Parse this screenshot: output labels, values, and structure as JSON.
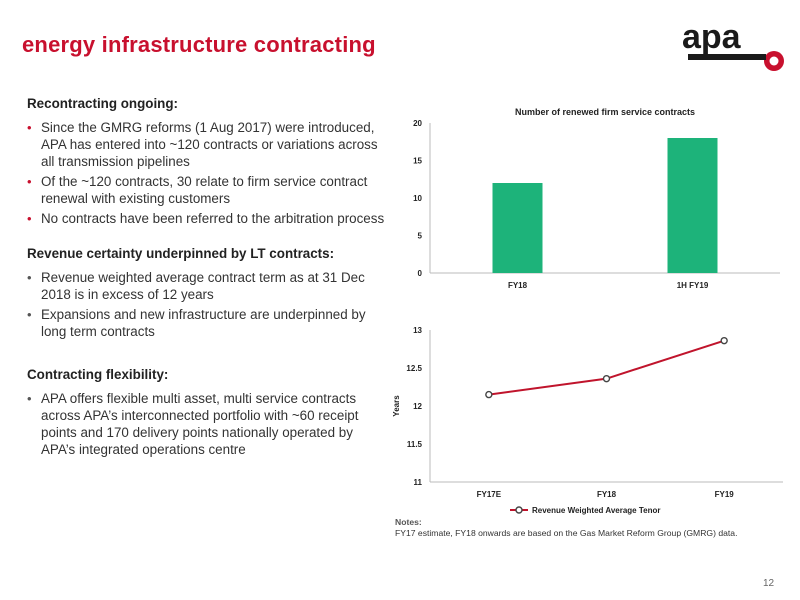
{
  "slide": {
    "title": "energy infrastructure contracting",
    "logo_text": "apa",
    "page_number": "12"
  },
  "sections": [
    {
      "heading": "Recontracting ongoing:",
      "bullets": [
        "Since the GMRG reforms (1 Aug 2017) were introduced, APA has entered into ~120 contracts or variations across all transmission pipelines",
        "Of the ~120 contracts, 30 relate to firm service contract renewal with existing customers",
        "No contracts have been referred to the arbitration process"
      ]
    },
    {
      "heading": "Revenue certainty underpinned by LT contracts:",
      "bullets": [
        "Revenue weighted average contract term as at 31 Dec 2018 is in excess of 12 years",
        "Expansions and new infrastructure are underpinned by long term contracts"
      ]
    },
    {
      "heading": "Contracting flexibility:",
      "bullets": [
        "APA offers flexible multi asset, multi service contracts across APA’s interconnected portfolio with ~60 receipt points and 170 delivery points nationally operated by APA’s integrated operations centre"
      ]
    }
  ],
  "notes": {
    "heading": "Notes:",
    "text": "FY17 estimate, FY18 onwards are based on the Gas Market Reform Group (GMRG) data."
  },
  "colors": {
    "brand_red": "#c8102e",
    "bar_green": "#1db37a",
    "line_red": "#c0142c",
    "logo_dark": "#1a1a1a"
  },
  "chart_data": [
    {
      "type": "bar",
      "title": "Number of renewed firm service contracts",
      "categories": [
        "FY18",
        "1H FY19"
      ],
      "values": [
        12,
        18
      ],
      "ylim": [
        0,
        20
      ],
      "yticks": [
        "0",
        "5",
        "10",
        "15",
        "20"
      ],
      "grid": false
    },
    {
      "type": "line",
      "title": "",
      "categories": [
        "FY17E",
        "FY18",
        "FY19"
      ],
      "series": [
        {
          "name": "Revenue Weighted Average Tenor",
          "values": [
            12.15,
            12.36,
            12.86
          ]
        }
      ],
      "ylabel": "Years",
      "ylim": [
        11,
        13
      ],
      "yticks": [
        "11",
        "11.5",
        "12",
        "12.5",
        "13"
      ],
      "legend": "bottom",
      "grid": false
    }
  ]
}
